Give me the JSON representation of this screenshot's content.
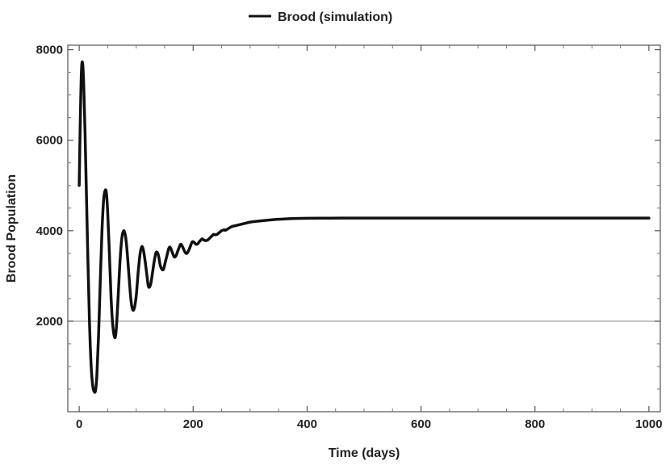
{
  "chart_data": {
    "type": "line",
    "title": "",
    "xlabel": "Time (days)",
    "ylabel": "Brood Population",
    "xlim": [
      -20,
      1020
    ],
    "ylim": [
      0,
      8100
    ],
    "x_ticks": [
      0,
      200,
      400,
      600,
      800,
      1000
    ],
    "y_ticks": [
      2000,
      4000,
      6000,
      8000
    ],
    "grid": false,
    "legend_position": "top-center",
    "series": [
      {
        "name": "Brood (simulation)",
        "color": "#111111",
        "x": [
          0,
          2,
          4,
          6,
          8,
          10,
          12,
          15,
          18,
          21,
          24,
          27,
          29,
          31,
          34,
          37,
          40,
          43,
          46,
          48,
          50,
          53,
          56,
          59,
          62,
          64,
          66,
          69,
          72,
          75,
          78,
          81,
          83,
          85,
          88,
          91,
          94,
          97,
          100,
          102,
          104,
          107,
          110,
          113,
          116,
          119,
          121,
          123,
          126,
          129,
          132,
          135,
          138,
          140,
          142,
          145,
          148,
          151,
          154,
          157,
          159,
          161,
          164,
          167,
          170,
          173,
          176,
          178,
          180,
          183,
          186,
          189,
          192,
          195,
          197,
          199,
          202,
          205,
          208,
          211,
          214,
          216,
          218,
          222,
          226,
          230,
          234,
          236,
          238,
          242,
          246,
          250,
          254,
          256,
          258,
          262,
          266,
          270,
          274,
          280,
          290,
          300,
          320,
          340,
          360,
          380,
          400,
          430,
          460,
          500,
          550,
          600,
          700,
          800,
          900,
          1000
        ],
        "y": [
          5000,
          6500,
          7550,
          7700,
          7200,
          6300,
          5200,
          3500,
          2000,
          1000,
          550,
          430,
          500,
          800,
          1700,
          2900,
          4000,
          4700,
          4900,
          4800,
          4400,
          3500,
          2500,
          1900,
          1650,
          1700,
          2000,
          2700,
          3400,
          3850,
          4000,
          3900,
          3700,
          3400,
          2900,
          2450,
          2250,
          2300,
          2550,
          2850,
          3150,
          3500,
          3650,
          3550,
          3300,
          3000,
          2800,
          2750,
          2850,
          3100,
          3350,
          3520,
          3500,
          3400,
          3250,
          3150,
          3150,
          3300,
          3450,
          3600,
          3640,
          3600,
          3500,
          3420,
          3450,
          3550,
          3650,
          3700,
          3680,
          3600,
          3520,
          3500,
          3560,
          3650,
          3720,
          3760,
          3740,
          3700,
          3710,
          3760,
          3800,
          3820,
          3800,
          3780,
          3800,
          3850,
          3900,
          3920,
          3910,
          3920,
          3960,
          4000,
          4020,
          4010,
          4020,
          4050,
          4080,
          4100,
          4110,
          4130,
          4160,
          4190,
          4220,
          4245,
          4260,
          4270,
          4275,
          4278,
          4279,
          4280,
          4280,
          4280,
          4280,
          4280,
          4280,
          4280
        ]
      }
    ],
    "reference_line": {
      "y": 2000,
      "color": "#aaaaaa"
    }
  }
}
